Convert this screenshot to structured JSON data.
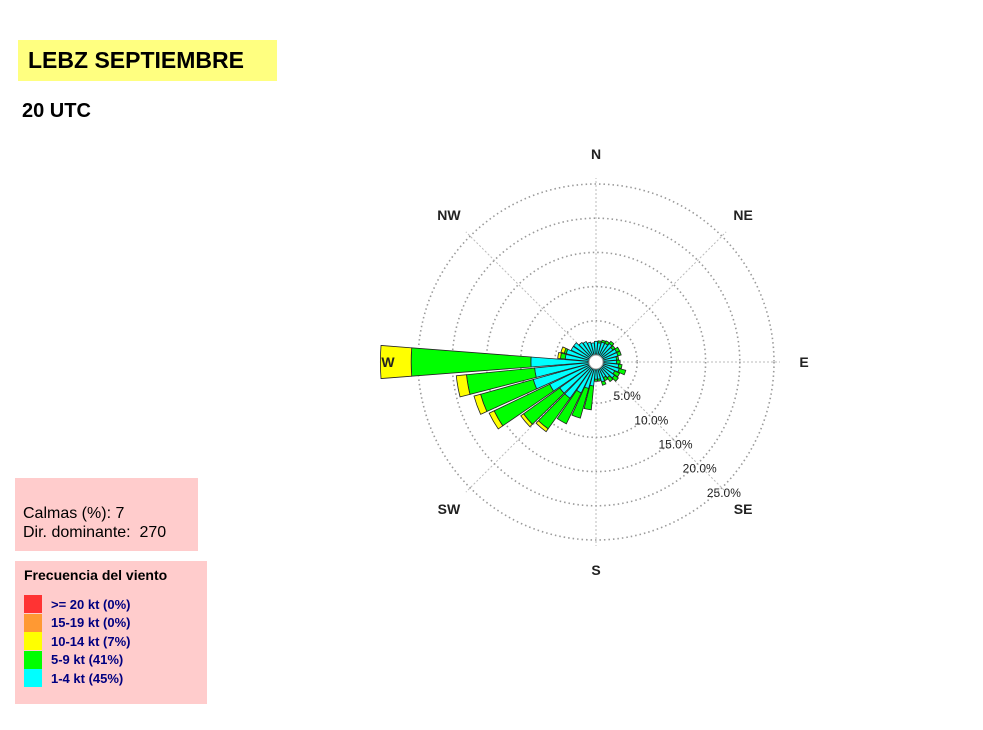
{
  "title": "LEBZ SEPTIEMBRE",
  "subtitle": "20 UTC",
  "calms": {
    "label": "Calmas (%):",
    "value": "7"
  },
  "dominant": {
    "label": "Dir. dominante:",
    "value": "270"
  },
  "legend": {
    "title": "Frecuencia del viento",
    "items": [
      {
        "label": ">= 20 kt (0%)",
        "color": "#ff3333"
      },
      {
        "label": "15-19 kt (0%)",
        "color": "#ff9933"
      },
      {
        "label": "10-14 kt (7%)",
        "color": "#ffff00"
      },
      {
        "label": "5-9 kt (41%)",
        "color": "#00ff00"
      },
      {
        "label": "1-4 kt (45%)",
        "color": "#00ffff"
      }
    ]
  },
  "chart_data": {
    "type": "wind-rose",
    "compass_labels": [
      "N",
      "NE",
      "E",
      "SE",
      "S",
      "SW",
      "W",
      "NW"
    ],
    "radial_ticks": [
      5,
      10,
      15,
      20,
      25
    ],
    "radial_tick_labels": [
      "5.0%",
      "10.0%",
      "15.0%",
      "20.0%",
      "25.0%"
    ],
    "rmax": 25,
    "sector_width_deg": 10,
    "series_order": [
      "1-4 kt",
      "5-9 kt",
      "10-14 kt"
    ],
    "series_colors": [
      "#00ffff",
      "#00ff00",
      "#ffff00"
    ],
    "sectors": [
      {
        "dir": 0,
        "values": [
          2.0,
          0.0,
          0.0
        ]
      },
      {
        "dir": 10,
        "values": [
          1.8,
          0.3,
          0.0
        ]
      },
      {
        "dir": 20,
        "values": [
          2.0,
          0.3,
          0.0
        ]
      },
      {
        "dir": 30,
        "values": [
          2.0,
          0.4,
          0.0
        ]
      },
      {
        "dir": 40,
        "values": [
          2.3,
          0.4,
          0.0
        ]
      },
      {
        "dir": 50,
        "values": [
          2.0,
          0.4,
          0.0
        ]
      },
      {
        "dir": 60,
        "values": [
          2.3,
          0.5,
          0.0
        ]
      },
      {
        "dir": 70,
        "values": [
          2.3,
          0.5,
          0.0
        ]
      },
      {
        "dir": 80,
        "values": [
          2.0,
          0.3,
          0.0
        ]
      },
      {
        "dir": 90,
        "values": [
          2.0,
          0.5,
          0.0
        ]
      },
      {
        "dir": 100,
        "values": [
          2.3,
          0.5,
          0.0
        ]
      },
      {
        "dir": 110,
        "values": [
          2.5,
          1.0,
          0.0
        ]
      },
      {
        "dir": 120,
        "values": [
          2.0,
          0.8,
          0.0
        ]
      },
      {
        "dir": 130,
        "values": [
          2.3,
          0.7,
          0.0
        ]
      },
      {
        "dir": 140,
        "values": [
          1.8,
          0.7,
          0.0
        ]
      },
      {
        "dir": 150,
        "values": [
          1.5,
          0.5,
          0.0
        ]
      },
      {
        "dir": 160,
        "values": [
          2.0,
          0.5,
          0.0
        ]
      },
      {
        "dir": 170,
        "values": [
          1.5,
          0.3,
          0.0
        ]
      },
      {
        "dir": 180,
        "values": [
          1.5,
          0.3,
          0.0
        ]
      },
      {
        "dir": 190,
        "values": [
          2.5,
          3.5,
          0.0
        ]
      },
      {
        "dir": 200,
        "values": [
          3.0,
          4.5,
          0.0
        ]
      },
      {
        "dir": 210,
        "values": [
          4.0,
          5.0,
          0.0
        ]
      },
      {
        "dir": 220,
        "values": [
          5.5,
          5.5,
          0.5
        ]
      },
      {
        "dir": 230,
        "values": [
          5.5,
          6.5,
          0.5
        ]
      },
      {
        "dir": 240,
        "values": [
          6.5,
          9.0,
          0.8
        ]
      },
      {
        "dir": 250,
        "values": [
          8.5,
          8.0,
          1.0
        ]
      },
      {
        "dir": 260,
        "values": [
          8.0,
          10.0,
          1.5
        ]
      },
      {
        "dir": 270,
        "values": [
          8.5,
          17.5,
          4.5
        ]
      },
      {
        "dir": 280,
        "values": [
          3.5,
          0.7,
          0.4
        ]
      },
      {
        "dir": 290,
        "values": [
          3.5,
          0.3,
          0.5
        ]
      },
      {
        "dir": 300,
        "values": [
          3.0,
          0.0,
          0.0
        ]
      },
      {
        "dir": 310,
        "values": [
          3.0,
          0.0,
          0.0
        ]
      },
      {
        "dir": 320,
        "values": [
          2.5,
          0.0,
          0.0
        ]
      },
      {
        "dir": 330,
        "values": [
          2.3,
          0.0,
          0.0
        ]
      },
      {
        "dir": 340,
        "values": [
          2.0,
          0.0,
          0.0
        ]
      },
      {
        "dir": 350,
        "values": [
          1.8,
          0.0,
          0.0
        ]
      }
    ]
  }
}
